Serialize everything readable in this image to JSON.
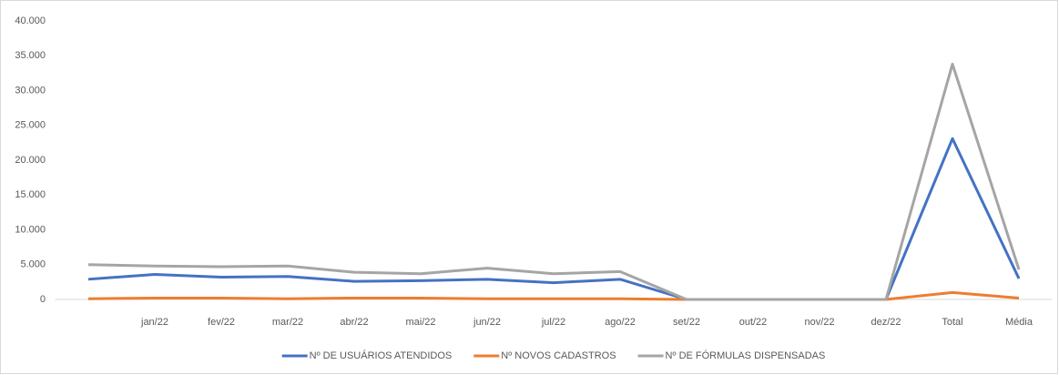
{
  "chart_data": {
    "type": "line",
    "categories": [
      null,
      "jan/22",
      "fev/22",
      "mar/22",
      "abr/22",
      "mai/22",
      "jun/22",
      "jul/22",
      "ago/22",
      "set/22",
      "out/22",
      "nov/22",
      "dez/22",
      "Total",
      "Média"
    ],
    "series": [
      {
        "name": "Nº DE USUÁRIOS ATENDIDOS",
        "color": "#4472c4",
        "values": [
          2900,
          3600,
          3200,
          3300,
          2600,
          2700,
          2900,
          2400,
          2900,
          0,
          0,
          0,
          0,
          23100,
          3000
        ]
      },
      {
        "name": "Nº NOVOS CADASTROS",
        "color": "#ed7d31",
        "values": [
          100,
          200,
          200,
          100,
          200,
          200,
          100,
          100,
          100,
          0,
          0,
          0,
          0,
          1000,
          200
        ]
      },
      {
        "name": "Nº DE FÓRMULAS DISPENSADAS",
        "color": "#a5a5a5",
        "values": [
          5000,
          4800,
          4700,
          4800,
          3900,
          3700,
          4500,
          3700,
          4000,
          0,
          0,
          0,
          0,
          33800,
          4300
        ]
      }
    ],
    "ylim": [
      0,
      40000
    ],
    "yticks": [
      0,
      {
        "value": 5000,
        "label": "5.000"
      },
      {
        "value": 10000,
        "label": "10.000"
      },
      {
        "value": 15000,
        "label": "15.000"
      },
      {
        "value": 20000,
        "label": "20.000"
      },
      {
        "value": 25000,
        "label": "25.000"
      },
      {
        "value": 30000,
        "label": "30.000"
      },
      {
        "value": 35000,
        "label": "35.000"
      },
      {
        "value": 40000,
        "label": "40.000"
      }
    ],
    "grid": false,
    "legend": "bottom"
  }
}
